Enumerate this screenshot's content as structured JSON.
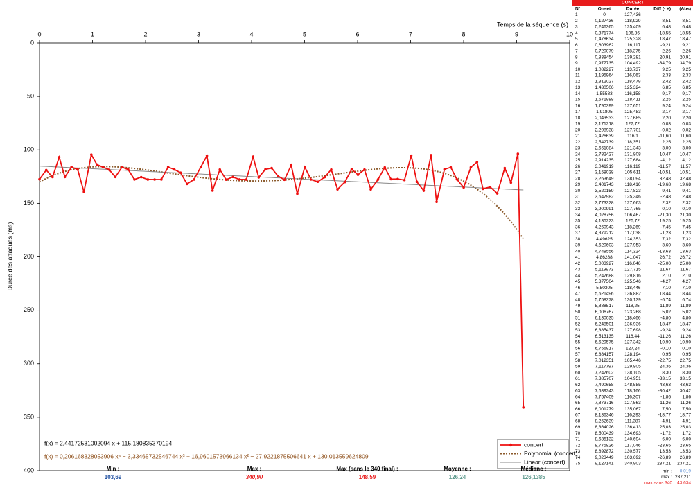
{
  "chart_data": {
    "type": "line",
    "xlabel": "Temps de la séquence (s)",
    "ylabel": "Durée des attaques (ms)",
    "xlim": [
      0,
      10
    ],
    "xticks": [
      0,
      1,
      2,
      3,
      4,
      5,
      6,
      7,
      8,
      9,
      10
    ],
    "ylim": [
      0,
      400
    ],
    "yticks": [
      0,
      50,
      100,
      150,
      200,
      250,
      300,
      350,
      400
    ],
    "y_inverted": true,
    "x": [
      0,
      0.127436,
      0.246365,
      0.371774,
      0.478634,
      0.603962,
      0.720079,
      0.838454,
      0.977735,
      1.082227,
      1.195964,
      1.312027,
      1.430506,
      1.55583,
      1.671988,
      1.790399,
      1.91805,
      2.043533,
      2.171218,
      2.298938,
      2.426639,
      2.542739,
      2.661084,
      2.782427,
      2.914235,
      3.041919,
      3.158038,
      3.263649,
      3.401743,
      3.520159,
      3.647982,
      3.773328,
      3.900991,
      4.028756,
      4.135223,
      4.260943,
      4.379212,
      4.49625,
      4.620603,
      4.748556,
      4.86288,
      5.003927,
      5.119973,
      5.247688,
      5.377504,
      5.50305,
      5.621496,
      5.758378,
      5.888517,
      6.006767,
      6.130035,
      6.248501,
      6.385437,
      6.513135,
      6.629575,
      6.756917,
      6.884157,
      7.012351,
      7.117797,
      7.247602,
      7.385707,
      7.490658,
      7.639243,
      7.757409,
      7.873716,
      8.001279,
      8.136346,
      8.252639,
      8.364026,
      8.500439,
      8.635132,
      8.775826,
      8.892872,
      9.023449,
      9.127141
    ],
    "series": [
      {
        "name": "concert",
        "color": "#ee1111",
        "values": [
          127.436,
          118.929,
          125.409,
          106.86,
          125.328,
          116.117,
          118.375,
          139.281,
          104.492,
          113.737,
          116.063,
          118.479,
          125.324,
          116.158,
          118.411,
          127.651,
          125.483,
          127.685,
          127.72,
          127.701,
          116.1,
          118.351,
          121.343,
          131.808,
          127.684,
          116.119,
          105.611,
          138.094,
          118.416,
          127.823,
          125.346,
          127.663,
          127.765,
          106.467,
          125.72,
          118.269,
          117.038,
          124.353,
          127.953,
          114.324,
          141.047,
          116.046,
          127.715,
          129.816,
          125.546,
          118.446,
          136.882,
          130.139,
          118.25,
          123.268,
          118.466,
          136.936,
          127.698,
          116.44,
          127.342,
          127.24,
          128.194,
          105.446,
          129.805,
          138.105,
          104.951,
          148.585,
          118.166,
          116.307,
          127.563,
          135.067,
          116.293,
          111.387,
          136.413,
          134.693,
          140.694,
          117.046,
          130.577,
          103.692,
          340.903
        ]
      }
    ],
    "trendlines": [
      {
        "name": "Polynomial (concert)",
        "color": "#8b5a2b",
        "equation": "f(x) = 0,206168328053906 x⁴ − 3,33465732546744 x³ + 16,9601573966134 x² − 27,9221875506641 x + 130,013559624809",
        "coefficients": [
          0.206168328053906,
          -3.33465732546744,
          16.9601573966134,
          -27.9221875506641,
          130.013559624809
        ]
      },
      {
        "name": "Linear (concert)",
        "color": "#888888",
        "equation": "f(x) = 2,44172531002094 x + 115,180835370194",
        "coefficients": [
          2.44172531002094,
          115.180835370194
        ]
      }
    ],
    "legend": "bottom-right"
  },
  "stats": [
    {
      "label": "Min :",
      "value": "103,69"
    },
    {
      "label": "Max :",
      "value": "340,90"
    },
    {
      "label": "Max (sans le 340 final) :",
      "value": "148,59"
    },
    {
      "label": "Moyenne :",
      "value": "126,24"
    },
    {
      "label": "Médiane :",
      "value": "126,1385"
    }
  ],
  "table": {
    "title": "CONCERT",
    "columns": [
      "N°",
      "Onset",
      "Durée",
      "Diff (- +)",
      "(Abs)"
    ],
    "rows": [
      [
        "1",
        "0",
        "127,436"
      ],
      [
        "2",
        "0,127436",
        "118,929",
        "-8,51",
        "8,51"
      ],
      [
        "3",
        "0,246365",
        "125,409",
        "6,48",
        "6,48"
      ],
      [
        "4",
        "0,371774",
        "106,86",
        "-18,55",
        "18,55"
      ],
      [
        "5",
        "0,478634",
        "125,328",
        "18,47",
        "18,47"
      ],
      [
        "6",
        "0,603962",
        "116,117",
        "-9,21",
        "9,21"
      ],
      [
        "7",
        "0,720079",
        "118,375",
        "2,26",
        "2,26"
      ],
      [
        "8",
        "0,838454",
        "139,281",
        "20,91",
        "20,91"
      ],
      [
        "9",
        "0,977735",
        "104,492",
        "-34,79",
        "34,79"
      ],
      [
        "10",
        "1,082227",
        "113,737",
        "9,25",
        "9,25"
      ],
      [
        "11",
        "1,195964",
        "116,063",
        "2,33",
        "2,33"
      ],
      [
        "12",
        "1,312027",
        "118,479",
        "2,42",
        "2,42"
      ],
      [
        "13",
        "1,430506",
        "125,324",
        "6,85",
        "6,85"
      ],
      [
        "14",
        "1,55583",
        "116,158",
        "-9,17",
        "9,17"
      ],
      [
        "15",
        "1,671988",
        "118,411",
        "2,25",
        "2,25"
      ],
      [
        "16",
        "1,790399",
        "127,651",
        "9,24",
        "9,24"
      ],
      [
        "17",
        "1,91805",
        "125,483",
        "-2,17",
        "2,17"
      ],
      [
        "18",
        "2,043533",
        "127,685",
        "2,20",
        "2,20"
      ],
      [
        "19",
        "2,171218",
        "127,72",
        "0,03",
        "0,03"
      ],
      [
        "20",
        "2,298938",
        "127,701",
        "-0,02",
        "0,02"
      ],
      [
        "21",
        "2,426639",
        "116,1",
        "-11,60",
        "11,60"
      ],
      [
        "22",
        "2,542739",
        "118,351",
        "2,25",
        "2,25"
      ],
      [
        "23",
        "2,661084",
        "121,343",
        "3,00",
        "3,00"
      ],
      [
        "24",
        "2,782427",
        "131,808",
        "10,47",
        "10,47"
      ],
      [
        "25",
        "2,914235",
        "127,684",
        "-4,12",
        "4,12"
      ],
      [
        "26",
        "3,041919",
        "116,119",
        "-11,57",
        "11,57"
      ],
      [
        "27",
        "3,158038",
        "105,611",
        "-10,51",
        "10,51"
      ],
      [
        "28",
        "3,263649",
        "138,094",
        "32,48",
        "32,48"
      ],
      [
        "29",
        "3,401743",
        "118,416",
        "-19,68",
        "19,68"
      ],
      [
        "30",
        "3,520159",
        "127,823",
        "9,41",
        "9,41"
      ],
      [
        "31",
        "3,647982",
        "125,346",
        "-2,48",
        "2,48"
      ],
      [
        "32",
        "3,773328",
        "127,663",
        "2,32",
        "2,32"
      ],
      [
        "33",
        "3,900991",
        "127,765",
        "0,10",
        "0,10"
      ],
      [
        "34",
        "4,028756",
        "106,467",
        "-21,30",
        "21,30"
      ],
      [
        "35",
        "4,135223",
        "125,72",
        "19,25",
        "19,25"
      ],
      [
        "36",
        "4,260943",
        "118,269",
        "-7,45",
        "7,45"
      ],
      [
        "37",
        "4,379212",
        "117,038",
        "-1,23",
        "1,23"
      ],
      [
        "38",
        "4,49625",
        "124,353",
        "7,32",
        "7,32"
      ],
      [
        "39",
        "4,620603",
        "127,953",
        "3,60",
        "3,60"
      ],
      [
        "40",
        "4,748556",
        "114,324",
        "-13,63",
        "13,63"
      ],
      [
        "41",
        "4,86288",
        "141,047",
        "26,72",
        "26,72"
      ],
      [
        "42",
        "5,003927",
        "116,046",
        "-25,00",
        "25,00"
      ],
      [
        "43",
        "5,119973",
        "127,715",
        "11,67",
        "11,67"
      ],
      [
        "44",
        "5,247688",
        "129,816",
        "2,10",
        "2,10"
      ],
      [
        "45",
        "5,377504",
        "125,546",
        "-4,27",
        "4,27"
      ],
      [
        "46",
        "5,50305",
        "118,446",
        "-7,10",
        "7,10"
      ],
      [
        "47",
        "5,621496",
        "136,882",
        "18,44",
        "18,44"
      ],
      [
        "48",
        "5,758378",
        "130,139",
        "-6,74",
        "6,74"
      ],
      [
        "49",
        "5,888517",
        "118,25",
        "-11,89",
        "11,89"
      ],
      [
        "50",
        "6,006767",
        "123,268",
        "5,02",
        "5,02"
      ],
      [
        "51",
        "6,130035",
        "118,466",
        "-4,80",
        "4,80"
      ],
      [
        "52",
        "6,248501",
        "136,936",
        "18,47",
        "18,47"
      ],
      [
        "53",
        "6,385437",
        "127,698",
        "-9,24",
        "9,24"
      ],
      [
        "54",
        "6,513135",
        "116,44",
        "-11,26",
        "11,26"
      ],
      [
        "55",
        "6,629575",
        "127,342",
        "10,90",
        "10,90"
      ],
      [
        "56",
        "6,756917",
        "127,24",
        "-0,10",
        "0,10"
      ],
      [
        "57",
        "6,884157",
        "128,194",
        "0,95",
        "0,95"
      ],
      [
        "58",
        "7,012351",
        "105,446",
        "-22,75",
        "22,75"
      ],
      [
        "59",
        "7,117797",
        "129,805",
        "24,36",
        "24,36"
      ],
      [
        "60",
        "7,247602",
        "138,105",
        "8,30",
        "8,30"
      ],
      [
        "61",
        "7,385707",
        "104,951",
        "-33,15",
        "33,15"
      ],
      [
        "62",
        "7,490658",
        "148,585",
        "43,63",
        "43,63"
      ],
      [
        "63",
        "7,639243",
        "118,166",
        "-30,42",
        "30,42"
      ],
      [
        "64",
        "7,757409",
        "116,307",
        "-1,86",
        "1,86"
      ],
      [
        "65",
        "7,873716",
        "127,563",
        "11,26",
        "11,26"
      ],
      [
        "66",
        "8,001279",
        "135,067",
        "7,50",
        "7,50"
      ],
      [
        "67",
        "8,136346",
        "116,293",
        "-18,77",
        "18,77"
      ],
      [
        "68",
        "8,252639",
        "111,387",
        "-4,91",
        "4,91"
      ],
      [
        "69",
        "8,364026",
        "136,413",
        "25,03",
        "25,03"
      ],
      [
        "70",
        "8,500439",
        "134,693",
        "-1,72",
        "1,72"
      ],
      [
        "71",
        "8,635132",
        "140,694",
        "6,00",
        "6,00"
      ],
      [
        "72",
        "8,775826",
        "117,046",
        "-23,65",
        "23,65"
      ],
      [
        "73",
        "8,892872",
        "130,577",
        "13,53",
        "13,53"
      ],
      [
        "74",
        "9,023449",
        "103,692",
        "-26,89",
        "26,89"
      ],
      [
        "75",
        "9,127141",
        "340,903",
        "237,21",
        "237,21"
      ]
    ]
  },
  "footer": [
    {
      "label": "min :",
      "value": "0,019"
    },
    {
      "label": "max :",
      "value": "237,211"
    },
    {
      "label": "max sans 340",
      "value": "43,634"
    }
  ]
}
